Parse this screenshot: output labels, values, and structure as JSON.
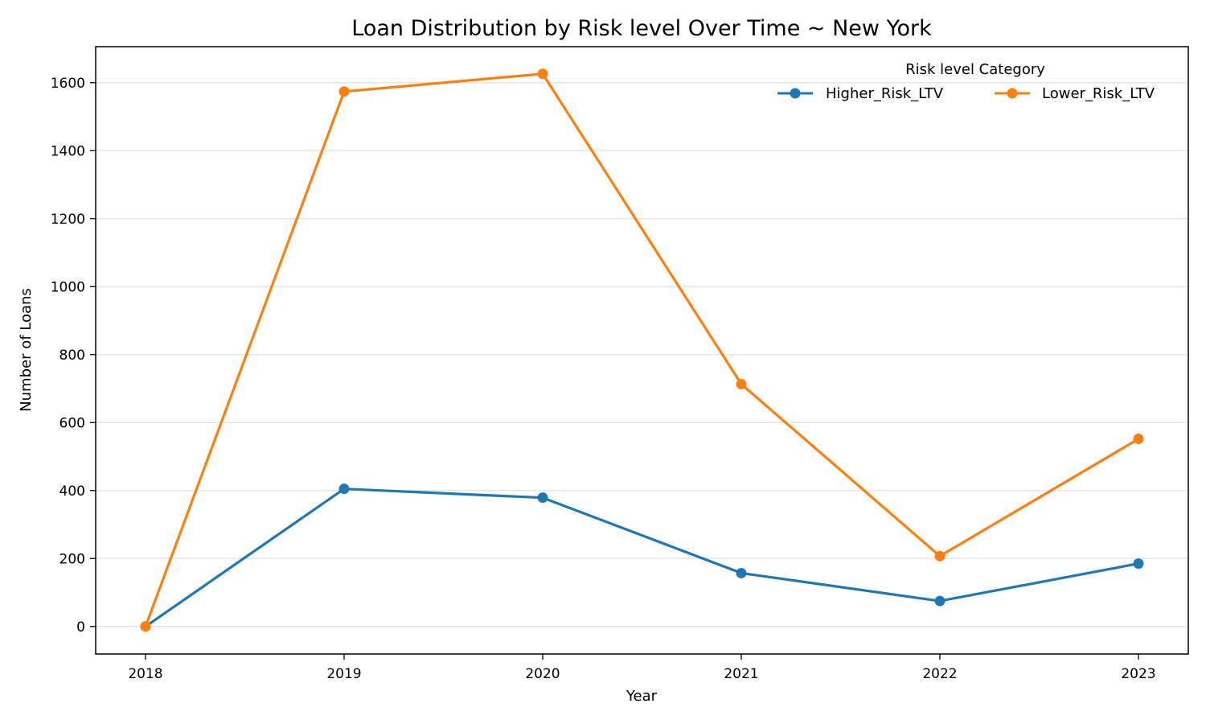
{
  "chart_data": {
    "type": "line",
    "title": "Loan Distribution by Risk level Over Time ~ New York",
    "xlabel": "Year",
    "ylabel": "Number of Loans",
    "categories": [
      "2018",
      "2019",
      "2020",
      "2021",
      "2022",
      "2023"
    ],
    "y_ticks": [
      0,
      200,
      400,
      600,
      800,
      1000,
      1200,
      1400,
      1600
    ],
    "ylim": [
      -81,
      1706
    ],
    "grid": "horizontal",
    "legend": {
      "title": "Risk level Category",
      "placement": "top-right",
      "columns": 2
    },
    "series": [
      {
        "name": "Higher_Risk_LTV",
        "color": "#1f77b4",
        "values": [
          0,
          405,
          379,
          157,
          75,
          185
        ]
      },
      {
        "name": "Lower_Risk_LTV",
        "color": "#ff7f0e",
        "values": [
          0,
          1574,
          1626,
          713,
          207,
          552
        ]
      }
    ]
  }
}
